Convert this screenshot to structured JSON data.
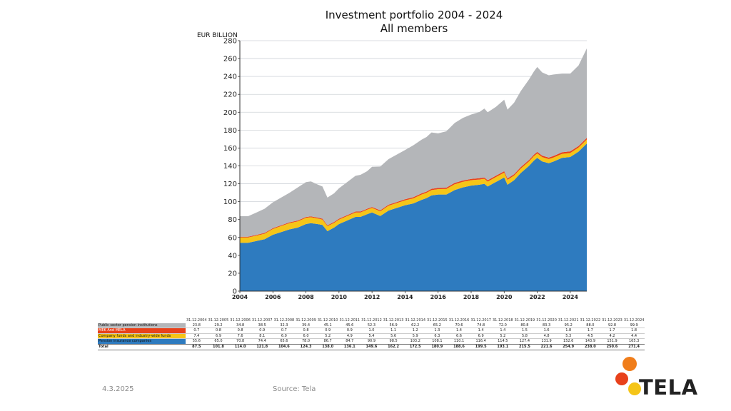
{
  "chart_data": {
    "type": "area",
    "stacked": true,
    "title": [
      "Investment portfolio 2004 - 2024",
      "All members"
    ],
    "ylabel": "EUR BILLION",
    "ylim": [
      0,
      280
    ],
    "yticks": [
      0,
      20,
      40,
      60,
      80,
      100,
      120,
      140,
      160,
      180,
      200,
      220,
      240,
      260,
      280
    ],
    "xlim": [
      2004,
      2025
    ],
    "xticks": [
      2004,
      2006,
      2008,
      2010,
      2012,
      2014,
      2016,
      2018,
      2020,
      2022,
      2024
    ],
    "grid": true,
    "colors": [
      "#2e7bbf",
      "#f5c518",
      "#e8411b",
      "#b4b6b9"
    ],
    "series_order_bottom_to_top": [
      "Pension insurance companies",
      "Company funds and industry-wide funds",
      "MEK And MELA",
      "Public sector pension institutions"
    ],
    "series": [
      {
        "name": "Pension insurance companies",
        "x": [
          2004,
          2004.5,
          2005,
          2005.5,
          2006,
          2006.5,
          2007,
          2007.5,
          2008,
          2008.3,
          2008.7,
          2009,
          2009.3,
          2009.7,
          2010,
          2010.5,
          2011,
          2011.3,
          2011.7,
          2012,
          2012.5,
          2013,
          2013.5,
          2014,
          2014.5,
          2015,
          2015.3,
          2015.6,
          2016,
          2016.5,
          2017,
          2017.5,
          2018,
          2018.5,
          2018.8,
          2019,
          2019.5,
          2020,
          2020.2,
          2020.6,
          2021,
          2021.5,
          2021.8,
          2022,
          2022.3,
          2022.7,
          2023,
          2023.5,
          2024,
          2024.5,
          2025
        ],
        "values": [
          54,
          54,
          56,
          58,
          63,
          66,
          69,
          71,
          75,
          76,
          75,
          74,
          67,
          71,
          75,
          79,
          83,
          83,
          86,
          88,
          84,
          90,
          93,
          96,
          98,
          102,
          104,
          107,
          108,
          108,
          113,
          116,
          118,
          119,
          120,
          117,
          122,
          127,
          119,
          124,
          132,
          140,
          146,
          149,
          145,
          143,
          145,
          149,
          150,
          156,
          165
        ]
      },
      {
        "name": "Company funds and industry-wide funds",
        "x": [
          2004,
          2005,
          2006,
          2007,
          2008,
          2009,
          2010,
          2011,
          2012,
          2013,
          2014,
          2015,
          2016,
          2017,
          2018,
          2019,
          2020,
          2021,
          2022,
          2023,
          2024,
          2025
        ],
        "values": [
          6,
          6,
          6.5,
          7,
          7,
          6,
          5,
          5,
          5,
          5.5,
          5.5,
          6,
          6,
          6.5,
          6,
          5.5,
          5.5,
          5,
          5,
          4.5,
          4.5,
          4.5
        ]
      },
      {
        "name": "MEK And MELA",
        "x": [
          2004,
          2008,
          2012,
          2016,
          2020,
          2025
        ],
        "values": [
          0.8,
          0.9,
          1.0,
          1.4,
          1.5,
          1.8
        ]
      },
      {
        "name": "Public sector pension institutions",
        "x": [
          2004,
          2004.5,
          2005,
          2005.5,
          2006,
          2006.5,
          2007,
          2007.5,
          2008,
          2008.3,
          2008.7,
          2009,
          2009.3,
          2009.7,
          2010,
          2010.5,
          2011,
          2011.3,
          2011.7,
          2012,
          2012.5,
          2013,
          2013.5,
          2014,
          2014.5,
          2015,
          2015.3,
          2015.6,
          2016,
          2016.5,
          2017,
          2017.5,
          2018,
          2018.5,
          2018.8,
          2019,
          2019.5,
          2020,
          2020.2,
          2020.6,
          2021,
          2021.5,
          2021.8,
          2022,
          2022.3,
          2022.7,
          2023,
          2023.5,
          2024,
          2024.5,
          2025
        ],
        "values": [
          23,
          23,
          25,
          27,
          29,
          31,
          33,
          37,
          39,
          39,
          37,
          36,
          31,
          32,
          34,
          37,
          40,
          41,
          42,
          45,
          49,
          51,
          53,
          55,
          58,
          60,
          61,
          63,
          61,
          63,
          67,
          70,
          72,
          74,
          77,
          76,
          77,
          80,
          77,
          80,
          85,
          90,
          93,
          95,
          93,
          92,
          91,
          88,
          87,
          90,
          100
        ]
      }
    ]
  },
  "table": {
    "dates": [
      "31.12.2004",
      "31.12.2005",
      "31.12.2006",
      "31.12.2007",
      "31.12.2008",
      "31.12.2009",
      "31.12.2010",
      "31.12.2011",
      "31.12.2012",
      "31.12.2013",
      "31.12.2014",
      "31.12.2015",
      "31.12.2016",
      "31.12.2017",
      "31.12.2018",
      "31.12.2019",
      "31.12.2020",
      "31.12.2021",
      "31.12.2022",
      "31.12.2023",
      "31.12.2024"
    ],
    "rows": [
      {
        "label": "Public sector pension institutions",
        "color": "#b4b6b9",
        "values": [
          "23.8",
          "29.2",
          "34.8",
          "38.5",
          "32.3",
          "39.4",
          "45.1",
          "45.6",
          "52.3",
          "56.9",
          "62.2",
          "65.2",
          "70.6",
          "74.8",
          "72.0",
          "80.8",
          "83.3",
          "95.2",
          "88.0",
          "92.8",
          "99.9"
        ]
      },
      {
        "label": "MEK And MELA",
        "color": "#e8411b",
        "values": [
          "0.7",
          "0.8",
          "0.8",
          "0.9",
          "0.7",
          "0.8",
          "0.9",
          "0.9",
          "1.0",
          "1.1",
          "1.2",
          "1.3",
          "1.4",
          "1.4",
          "1.4",
          "1.5",
          "1.6",
          "1.8",
          "1.7",
          "1.7",
          "1.8"
        ]
      },
      {
        "label": "Company funds and industry-wide funds",
        "color": "#f5c518",
        "values": [
          "7.4",
          "6.9",
          "7.6",
          "8.1",
          "6.0",
          "6.0",
          "5.2",
          "4.9",
          "5.4",
          "5.6",
          "5.9",
          "6.3",
          "6.6",
          "6.9",
          "5.2",
          "5.8",
          "4.8",
          "5.3",
          "4.5",
          "4.2",
          "4.4"
        ]
      },
      {
        "label": "Pension insurance companies",
        "color": "#2e7bbf",
        "values": [
          "55.6",
          "65.0",
          "70.8",
          "74.4",
          "65.6",
          "78.0",
          "86.7",
          "84.7",
          "90.9",
          "98.5",
          "103.2",
          "108.1",
          "110.1",
          "116.4",
          "114.5",
          "127.4",
          "131.9",
          "152.6",
          "143.9",
          "151.9",
          "165.3"
        ]
      }
    ],
    "total": {
      "label": "Total",
      "values": [
        "87.5",
        "101.8",
        "114.0",
        "121.8",
        "104.6",
        "124.3",
        "138.0",
        "136.1",
        "149.6",
        "162.2",
        "172.5",
        "180.9",
        "188.6",
        "199.5",
        "193.1",
        "215.5",
        "221.6",
        "254.9",
        "238.0",
        "250.6",
        "271.4"
      ]
    }
  },
  "footer": {
    "date": "4.3.2025",
    "source": "Source: Tela"
  },
  "logo": {
    "text": "TELA",
    "colors": [
      "#f07d1a",
      "#f5c518",
      "#e8411b"
    ]
  }
}
